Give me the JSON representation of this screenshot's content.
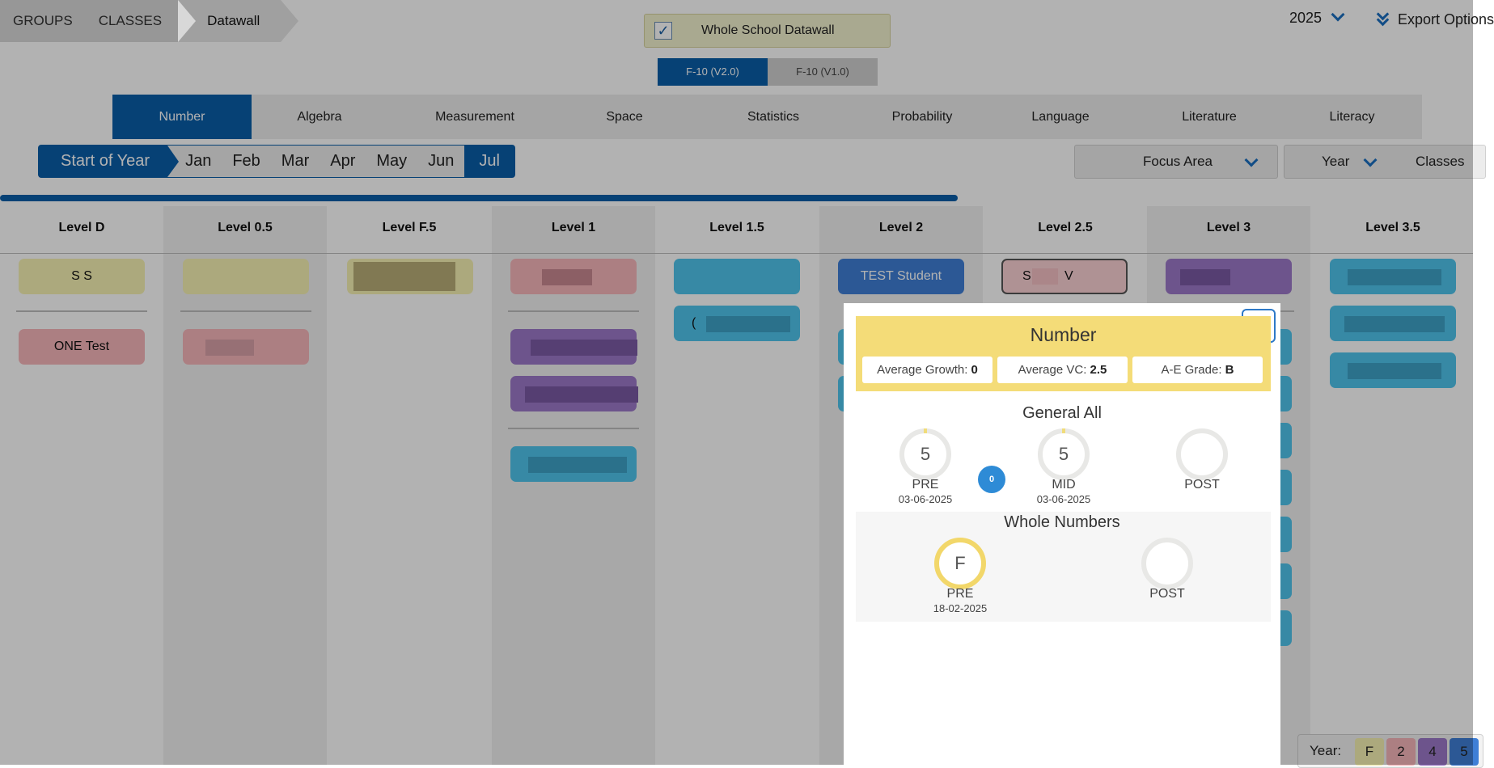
{
  "breadcrumb": {
    "items": [
      "GROUPS",
      "CLASSES",
      "Datawall"
    ]
  },
  "datawall_toggle": {
    "label": "Whole School Datawall",
    "checked": true,
    "check_glyph": "✓"
  },
  "curriculum": {
    "options": [
      "F-10 (V2.0)",
      "F-10 (V1.0)"
    ],
    "selected": "F-10 (V2.0)"
  },
  "year_select": {
    "value": "2025"
  },
  "export": {
    "label": "Export Options"
  },
  "strands": {
    "items": [
      "Number",
      "Algebra",
      "Measurement",
      "Space",
      "Statistics",
      "Probability",
      "Language",
      "Literature",
      "Literacy"
    ],
    "active": "Number"
  },
  "months": {
    "items": [
      "Start of Year",
      "Jan",
      "Feb",
      "Mar",
      "Apr",
      "May",
      "Jun",
      "Jul"
    ],
    "active": "Jul"
  },
  "filters": {
    "focus_area": "Focus Area",
    "year": "Year",
    "classes": "Classes"
  },
  "progress": {
    "fraction": 0.65
  },
  "levels": [
    "Level D",
    "Level 0.5",
    "Level F.5",
    "Level 1",
    "Level 1.5",
    "Level 2",
    "Level 2.5",
    "Level 3",
    "Level 3.5"
  ],
  "cards": {
    "ss": "S S",
    "one_test": "ONE Test",
    "test_student": "TEST Student",
    "s_v_first": "S",
    "s_v_last": "V",
    "partial_c": "("
  },
  "year_legend": {
    "label": "Year:",
    "chips": [
      "F",
      "2",
      "4",
      "5"
    ],
    "colors": [
      "#f6f3b3",
      "#f7b7bb",
      "#9c79c9",
      "#3f7fd6"
    ]
  },
  "modal": {
    "title": "Number",
    "stats": [
      {
        "label": "Average Growth:",
        "value": "0"
      },
      {
        "label": "Average VC:",
        "value": "2.5"
      },
      {
        "label": "A-E Grade:",
        "value": "B"
      }
    ],
    "general": {
      "title": "General All",
      "pre": {
        "value": "5",
        "label": "PRE",
        "date": "03-06-2025"
      },
      "growth": "0",
      "mid": {
        "value": "5",
        "label": "MID",
        "date": "03-06-2025"
      },
      "post": {
        "value": "",
        "label": "POST"
      }
    },
    "whole_numbers": {
      "title": "Whole Numbers",
      "pre": {
        "value": "F",
        "label": "PRE",
        "date": "18-02-2025"
      },
      "post": {
        "value": "",
        "label": "POST"
      }
    }
  }
}
